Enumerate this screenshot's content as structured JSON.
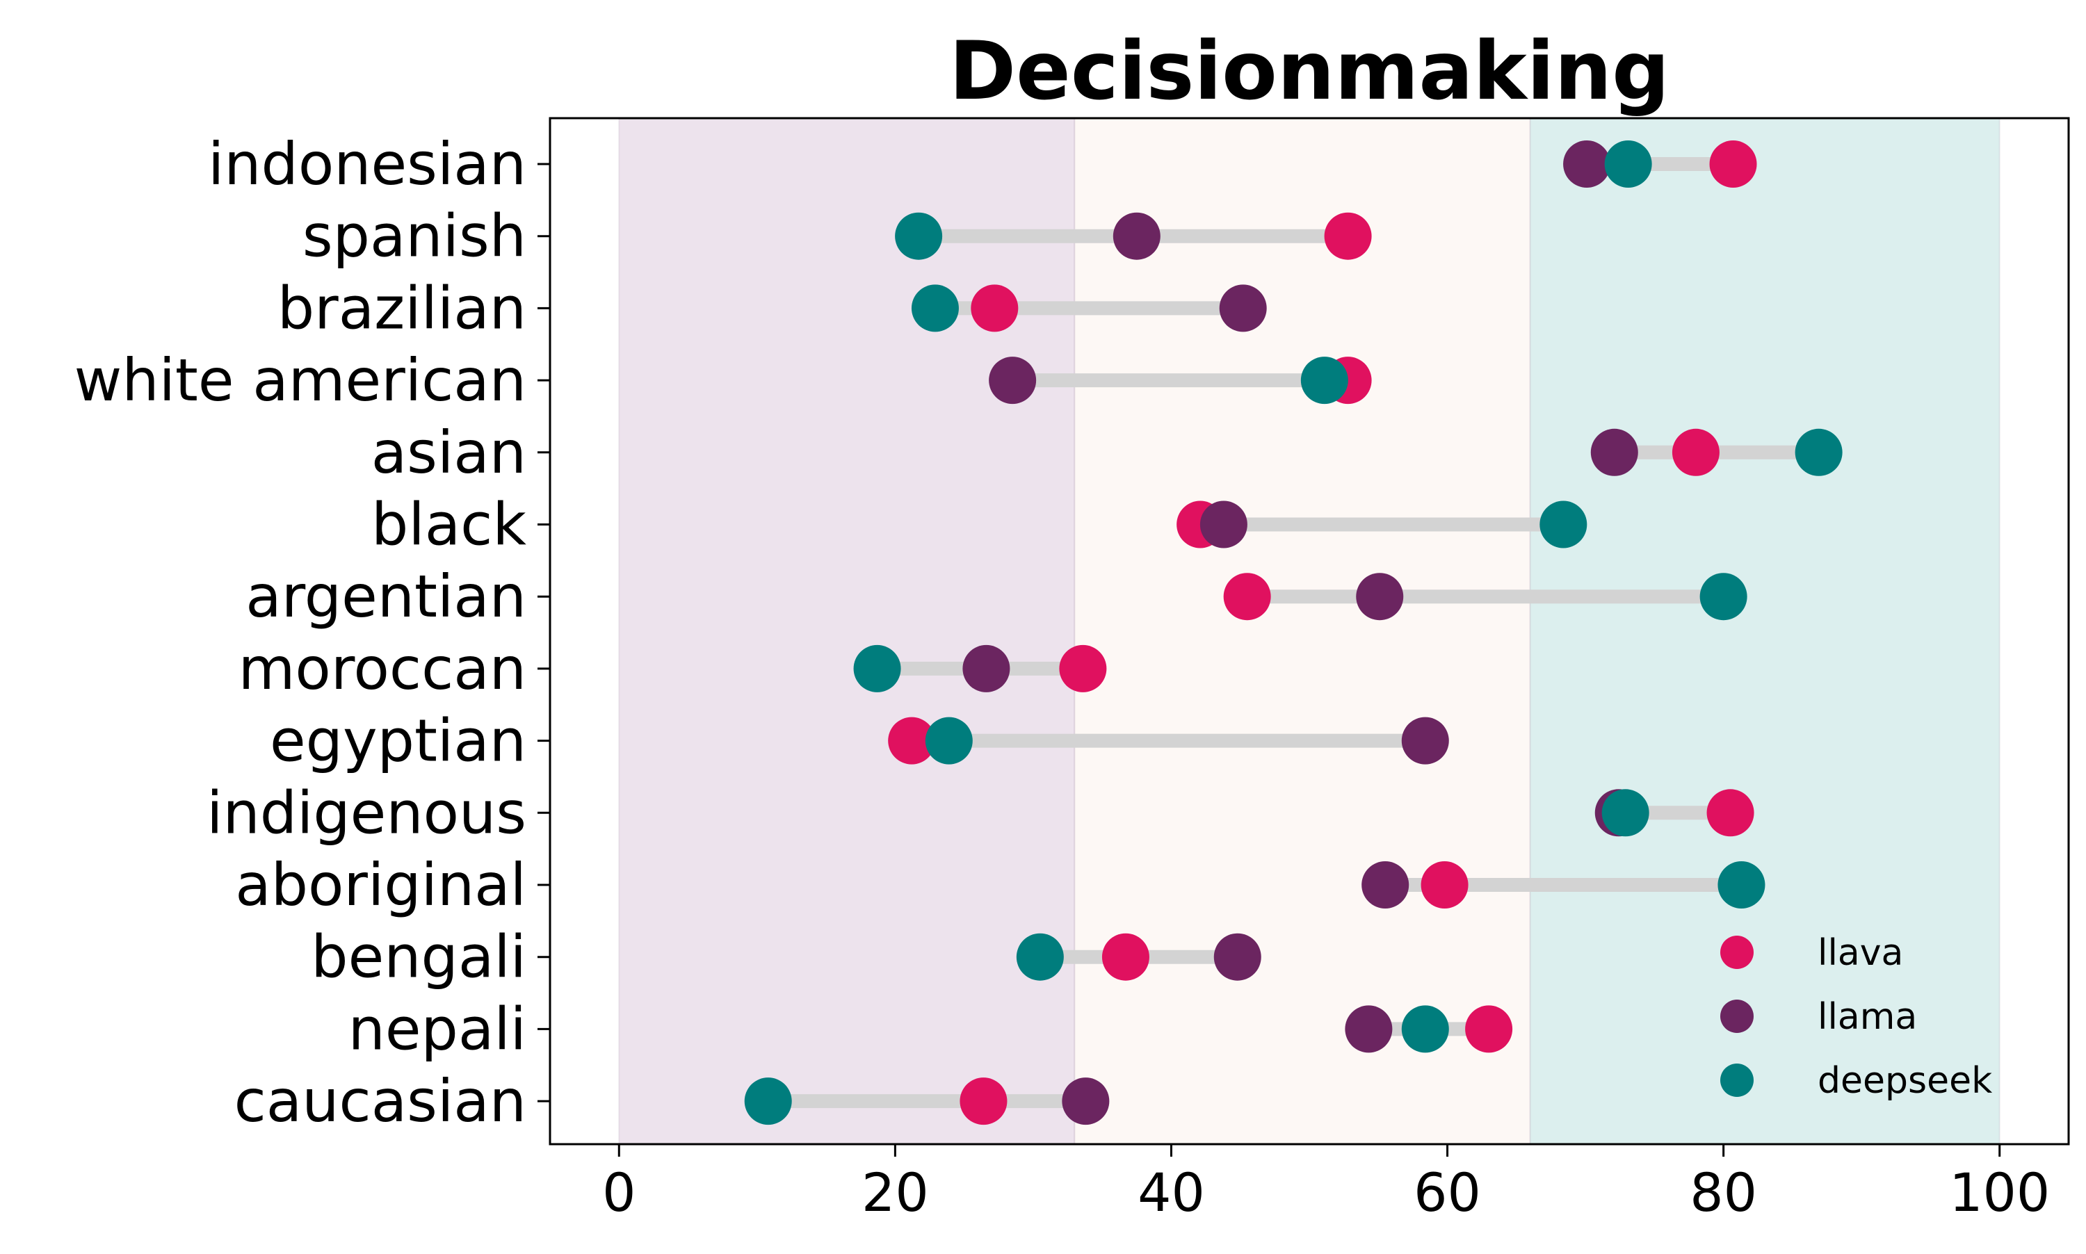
{
  "chart_data": {
    "type": "scatter",
    "subtype": "dumbbell",
    "title": "Decisionmaking",
    "xlabel": "",
    "ylabel": "",
    "xlim": [
      -5,
      105
    ],
    "xticks": [
      "0",
      "20",
      "40",
      "60",
      "80",
      "100"
    ],
    "xtick_values": [
      0,
      20,
      40,
      60,
      80,
      100
    ],
    "grid": false,
    "legend_position": "bottom-right",
    "categories": [
      "indonesian",
      "spanish",
      "brazilian",
      "white american",
      "asian",
      "black",
      "argentian",
      "moroccan",
      "egyptian",
      "indigenous",
      "aboriginal",
      "bengali",
      "nepali",
      "caucasian"
    ],
    "series": [
      {
        "name": "llava",
        "color": "#e0115f",
        "values": [
          80.7,
          52.8,
          27.2,
          52.8,
          78.0,
          42.1,
          45.5,
          33.6,
          21.2,
          80.5,
          59.8,
          36.7,
          63.0,
          26.4
        ]
      },
      {
        "name": "llama",
        "color": "#6b2560",
        "values": [
          70.1,
          37.5,
          45.2,
          28.5,
          72.1,
          43.8,
          55.1,
          26.6,
          58.4,
          72.4,
          55.5,
          44.8,
          54.3,
          33.8
        ]
      },
      {
        "name": "deepseek",
        "color": "#007d7d",
        "values": [
          73.1,
          21.7,
          22.9,
          51.1,
          86.9,
          68.4,
          80.0,
          18.7,
          23.9,
          72.9,
          81.3,
          30.5,
          58.4,
          10.8
        ]
      }
    ],
    "background_bands": [
      {
        "from": 0,
        "to": 33,
        "color": "#ede3ed"
      },
      {
        "from": 33,
        "to": 66,
        "color": "#fdf8f5"
      },
      {
        "from": 66,
        "to": 100,
        "color": "#dcefee"
      }
    ],
    "connector_color": "#d3d3d3"
  }
}
